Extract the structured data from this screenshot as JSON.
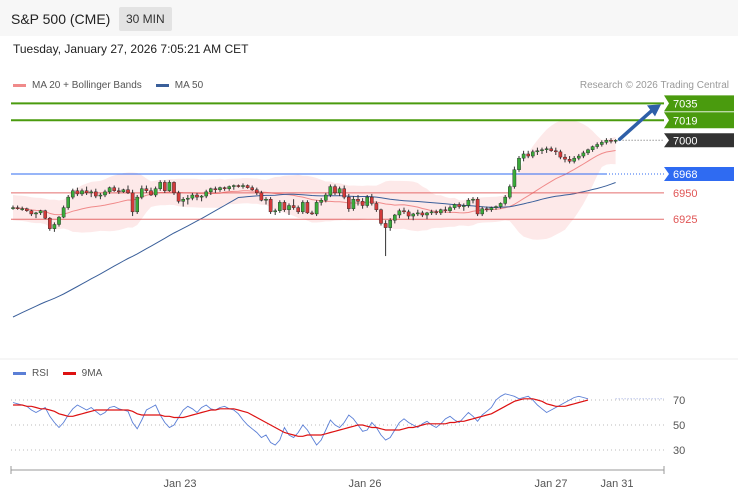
{
  "header": {
    "title": "S&P 500 (CME)",
    "interval": "30 MIN"
  },
  "datetime": "Tuesday, January 27, 2026 7:05:21 AM CET",
  "credit": "Research © 2026 Trading Central",
  "legend": {
    "bollinger": {
      "label": "MA 20 + Bollinger Bands",
      "color": "#f08a8a"
    },
    "ma50": {
      "label": "MA 50",
      "color": "#3a5f9a"
    }
  },
  "rsi_legend": {
    "rsi": {
      "label": "RSI",
      "color": "#5b7fd6"
    },
    "ma9": {
      "label": "9MA",
      "color": "#dd1111"
    }
  },
  "chart_data": [
    {
      "type": "candlestick",
      "x_ticks": [
        "Jan 23",
        "Jan 26",
        "Jan 27",
        "Jan 31"
      ],
      "ylim": [
        6815,
        7043
      ],
      "levels": [
        {
          "value": 7035,
          "label": "7035",
          "kind": "target",
          "color": "#4a9b0e"
        },
        {
          "value": 7019,
          "label": "7019",
          "kind": "target",
          "color": "#4a9b0e"
        },
        {
          "value": 7000,
          "label": "7000",
          "kind": "current",
          "color": "#333333"
        },
        {
          "value": 6968,
          "label": "6968",
          "kind": "pivot",
          "color": "#2f6bf2"
        },
        {
          "value": 6950,
          "label": "6950",
          "kind": "support",
          "color": "#e05555"
        },
        {
          "value": 6925,
          "label": "6925",
          "kind": "support",
          "color": "#e05555"
        }
      ],
      "candles": [
        [
          6936,
          6938,
          6934,
          6936
        ],
        [
          6936,
          6938,
          6934,
          6935
        ],
        [
          6935,
          6937,
          6933,
          6935
        ],
        [
          6935,
          6936,
          6932,
          6933
        ],
        [
          6933,
          6934,
          6928,
          6930
        ],
        [
          6930,
          6932,
          6926,
          6931
        ],
        [
          6931,
          6934,
          6929,
          6933
        ],
        [
          6933,
          6934,
          6925,
          6926
        ],
        [
          6926,
          6927,
          6914,
          6916
        ],
        [
          6916,
          6922,
          6913,
          6920
        ],
        [
          6920,
          6928,
          6918,
          6927
        ],
        [
          6927,
          6938,
          6926,
          6936
        ],
        [
          6936,
          6948,
          6934,
          6946
        ],
        [
          6946,
          6954,
          6944,
          6952
        ],
        [
          6952,
          6955,
          6947,
          6949
        ],
        [
          6949,
          6954,
          6947,
          6952
        ],
        [
          6952,
          6956,
          6948,
          6950
        ],
        [
          6950,
          6953,
          6946,
          6951
        ],
        [
          6951,
          6954,
          6945,
          6947
        ],
        [
          6947,
          6950,
          6944,
          6948
        ],
        [
          6948,
          6953,
          6946,
          6951
        ],
        [
          6951,
          6956,
          6949,
          6955
        ],
        [
          6955,
          6957,
          6951,
          6952
        ],
        [
          6952,
          6955,
          6949,
          6951
        ],
        [
          6951,
          6954,
          6950,
          6953
        ],
        [
          6953,
          6957,
          6949,
          6950
        ],
        [
          6950,
          6953,
          6928,
          6932
        ],
        [
          6932,
          6948,
          6930,
          6946
        ],
        [
          6946,
          6957,
          6944,
          6954
        ],
        [
          6954,
          6957,
          6950,
          6952
        ],
        [
          6952,
          6955,
          6947,
          6948
        ],
        [
          6948,
          6956,
          6946,
          6954
        ],
        [
          6954,
          6962,
          6952,
          6960
        ],
        [
          6960,
          6962,
          6950,
          6952
        ],
        [
          6952,
          6962,
          6951,
          6960
        ],
        [
          6960,
          6961,
          6948,
          6950
        ],
        [
          6950,
          6952,
          6940,
          6942
        ],
        [
          6942,
          6946,
          6937,
          6944
        ],
        [
          6944,
          6948,
          6939,
          6945
        ],
        [
          6945,
          6950,
          6943,
          6948
        ],
        [
          6948,
          6950,
          6943,
          6946
        ],
        [
          6946,
          6948,
          6942,
          6947
        ],
        [
          6947,
          6953,
          6945,
          6951
        ],
        [
          6951,
          6955,
          6948,
          6954
        ],
        [
          6954,
          6956,
          6950,
          6953
        ],
        [
          6953,
          6956,
          6951,
          6955
        ],
        [
          6955,
          6956,
          6952,
          6954
        ],
        [
          6954,
          6957,
          6952,
          6956
        ],
        [
          6956,
          6958,
          6953,
          6957
        ],
        [
          6957,
          6958,
          6955,
          6956
        ],
        [
          6956,
          6959,
          6954,
          6957
        ],
        [
          6957,
          6958,
          6954,
          6955
        ],
        [
          6955,
          6957,
          6952,
          6953
        ],
        [
          6953,
          6955,
          6948,
          6950
        ],
        [
          6950,
          6952,
          6942,
          6943
        ],
        [
          6943,
          6946,
          6939,
          6944
        ],
        [
          6944,
          6946,
          6930,
          6932
        ],
        [
          6932,
          6935,
          6929,
          6933
        ],
        [
          6933,
          6943,
          6931,
          6941
        ],
        [
          6941,
          6943,
          6932,
          6934
        ],
        [
          6934,
          6940,
          6929,
          6938
        ],
        [
          6938,
          6944,
          6934,
          6936
        ],
        [
          6936,
          6938,
          6930,
          6932
        ],
        [
          6932,
          6943,
          6930,
          6941
        ],
        [
          6941,
          6943,
          6930,
          6931
        ],
        [
          6931,
          6933,
          6929,
          6930
        ],
        [
          6930,
          6943,
          6928,
          6941
        ],
        [
          6941,
          6945,
          6938,
          6943
        ],
        [
          6943,
          6950,
          6941,
          6948
        ],
        [
          6948,
          6958,
          6946,
          6956
        ],
        [
          6956,
          6958,
          6948,
          6950
        ],
        [
          6950,
          6956,
          6947,
          6954
        ],
        [
          6954,
          6957,
          6944,
          6946
        ],
        [
          6946,
          6949,
          6932,
          6935
        ],
        [
          6935,
          6947,
          6933,
          6944
        ],
        [
          6944,
          6948,
          6938,
          6942
        ],
        [
          6942,
          6945,
          6935,
          6938
        ],
        [
          6938,
          6948,
          6936,
          6946
        ],
        [
          6946,
          6949,
          6938,
          6940
        ],
        [
          6940,
          6942,
          6932,
          6934
        ],
        [
          6934,
          6935,
          6919,
          6921
        ],
        [
          6921,
          6924,
          6890,
          6917
        ],
        [
          6917,
          6926,
          6914,
          6924
        ],
        [
          6924,
          6930,
          6921,
          6929
        ],
        [
          6929,
          6935,
          6926,
          6933
        ],
        [
          6933,
          6936,
          6930,
          6932
        ],
        [
          6932,
          6934,
          6925,
          6928
        ],
        [
          6928,
          6931,
          6924,
          6930
        ],
        [
          6930,
          6934,
          6928,
          6931
        ],
        [
          6931,
          6933,
          6927,
          6929
        ],
        [
          6929,
          6932,
          6925,
          6931
        ],
        [
          6931,
          6934,
          6929,
          6932
        ],
        [
          6932,
          6934,
          6929,
          6931
        ],
        [
          6931,
          6935,
          6929,
          6934
        ],
        [
          6934,
          6937,
          6931,
          6933
        ],
        [
          6933,
          6938,
          6931,
          6936
        ],
        [
          6936,
          6940,
          6934,
          6939
        ],
        [
          6939,
          6941,
          6935,
          6937
        ],
        [
          6937,
          6940,
          6933,
          6938
        ],
        [
          6938,
          6945,
          6936,
          6943
        ],
        [
          6943,
          6946,
          6940,
          6944
        ],
        [
          6944,
          6946,
          6928,
          6930
        ],
        [
          6930,
          6937,
          6928,
          6935
        ],
        [
          6935,
          6937,
          6932,
          6934
        ],
        [
          6934,
          6937,
          6932,
          6936
        ],
        [
          6936,
          6938,
          6934,
          6937
        ],
        [
          6937,
          6941,
          6935,
          6940
        ],
        [
          6940,
          6948,
          6938,
          6946
        ],
        [
          6946,
          6958,
          6944,
          6956
        ],
        [
          6956,
          6975,
          6954,
          6972
        ],
        [
          6972,
          6985,
          6970,
          6983
        ],
        [
          6983,
          6990,
          6980,
          6987
        ],
        [
          6987,
          6990,
          6983,
          6985
        ],
        [
          6985,
          6991,
          6983,
          6989
        ],
        [
          6989,
          6993,
          6986,
          6990
        ],
        [
          6990,
          6993,
          6987,
          6991
        ],
        [
          6991,
          6994,
          6988,
          6992
        ],
        [
          6992,
          6994,
          6989,
          6990
        ],
        [
          6990,
          6993,
          6986,
          6989
        ],
        [
          6989,
          6991,
          6982,
          6984
        ],
        [
          6984,
          6987,
          6979,
          6982
        ],
        [
          6982,
          6985,
          6978,
          6980
        ],
        [
          6980,
          6985,
          6978,
          6983
        ],
        [
          6983,
          6987,
          6981,
          6985
        ],
        [
          6985,
          6990,
          6983,
          6988
        ],
        [
          6988,
          6992,
          6986,
          6991
        ],
        [
          6991,
          6995,
          6989,
          6994
        ],
        [
          6994,
          6998,
          6992,
          6996
        ],
        [
          6996,
          7000,
          6994,
          6998
        ],
        [
          6998,
          7002,
          6996,
          7000
        ],
        [
          7000,
          7002,
          6997,
          6999
        ],
        [
          6999,
          7001,
          6997,
          7000
        ]
      ]
    },
    {
      "type": "line",
      "title": "RSI",
      "ylim": [
        22,
        78
      ],
      "y_ticks": [
        30,
        50,
        70
      ],
      "series": [
        {
          "name": "RSI",
          "color": "#5b7fd6",
          "values": [
            68,
            67,
            66,
            65,
            62,
            60,
            62,
            64,
            57,
            52,
            48,
            52,
            58,
            63,
            66,
            64,
            62,
            64,
            61,
            58,
            60,
            64,
            65,
            63,
            62,
            61,
            52,
            47,
            54,
            62,
            64,
            66,
            58,
            52,
            48,
            50,
            56,
            62,
            65,
            63,
            60,
            64,
            66,
            63,
            62,
            64,
            65,
            63,
            62,
            59,
            54,
            50,
            47,
            44,
            40,
            42,
            36,
            34,
            38,
            48,
            42,
            40,
            44,
            50,
            46,
            40,
            34,
            38,
            46,
            54,
            50,
            48,
            52,
            58,
            55,
            50,
            45,
            46,
            52,
            48,
            42,
            38,
            40,
            46,
            52,
            55,
            52,
            50,
            48,
            51,
            53,
            50,
            48,
            51,
            55,
            57,
            54,
            52,
            56,
            60,
            57,
            53,
            58,
            61,
            64,
            70,
            73,
            75,
            74,
            73,
            71,
            72,
            73,
            70,
            66,
            63,
            60,
            62,
            64,
            66,
            68,
            70,
            72,
            73,
            72,
            71
          ]
        },
        {
          "name": "9MA",
          "color": "#dd1111",
          "values": [
            66,
            66,
            66,
            65,
            65,
            64,
            63,
            63,
            62,
            61,
            59,
            58,
            57,
            57,
            58,
            59,
            60,
            61,
            62,
            62,
            62,
            62,
            62,
            62,
            62,
            62,
            61,
            59,
            58,
            58,
            58,
            58,
            58,
            57,
            57,
            56,
            56,
            56,
            57,
            58,
            59,
            60,
            61,
            62,
            62,
            63,
            63,
            63,
            63,
            62,
            61,
            60,
            58,
            56,
            54,
            52,
            50,
            48,
            46,
            44,
            43,
            42,
            41,
            41,
            42,
            42,
            42,
            42,
            43,
            44,
            45,
            46,
            47,
            48,
            49,
            50,
            50,
            49,
            48,
            48,
            47,
            46,
            46,
            46,
            46,
            47,
            48,
            48,
            49,
            50,
            51,
            51,
            51,
            51,
            51,
            52,
            52,
            53,
            53,
            54,
            55,
            56,
            57,
            58,
            59,
            61,
            63,
            65,
            67,
            69,
            70,
            71,
            71,
            71,
            70,
            69,
            67,
            66,
            65,
            65,
            65,
            66,
            67,
            68,
            69,
            70
          ]
        }
      ]
    }
  ]
}
